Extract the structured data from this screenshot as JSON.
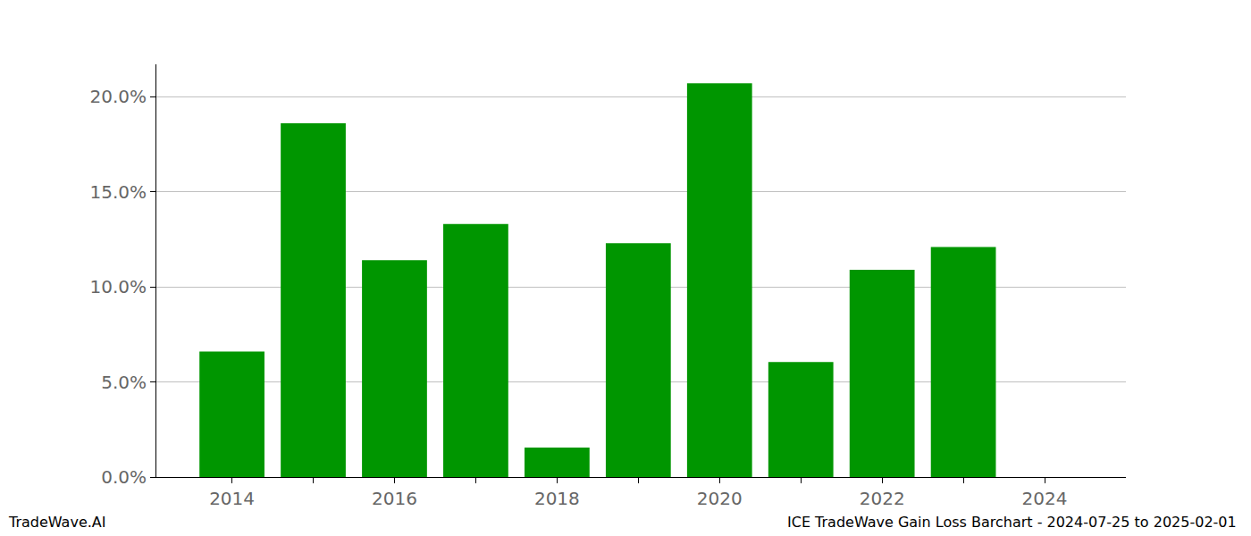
{
  "chart_data": {
    "type": "bar",
    "x": [
      2014,
      2015,
      2016,
      2017,
      2018,
      2019,
      2020,
      2021,
      2022,
      2023,
      2024
    ],
    "values": [
      6.6,
      18.6,
      11.4,
      13.3,
      1.55,
      12.3,
      20.7,
      6.05,
      10.9,
      12.1,
      null
    ],
    "color": "#009600",
    "xlim": [
      2013.07,
      2025.0
    ],
    "xticks": [
      2014,
      2016,
      2018,
      2020,
      2022,
      2024
    ],
    "ylim": [
      0,
      21.7
    ],
    "yticks": [
      {
        "value": 0,
        "label": "0.0%"
      },
      {
        "value": 5,
        "label": "5.0%"
      },
      {
        "value": 10,
        "label": "10.0%"
      },
      {
        "value": 15,
        "label": "15.0%"
      },
      {
        "value": 20,
        "label": "20.0%"
      }
    ],
    "grid": true,
    "annotations": [
      "TradeWave.AI",
      "ICE TradeWave Gain Loss Barchart - 2024-07-25 to 2025-02-01"
    ]
  }
}
